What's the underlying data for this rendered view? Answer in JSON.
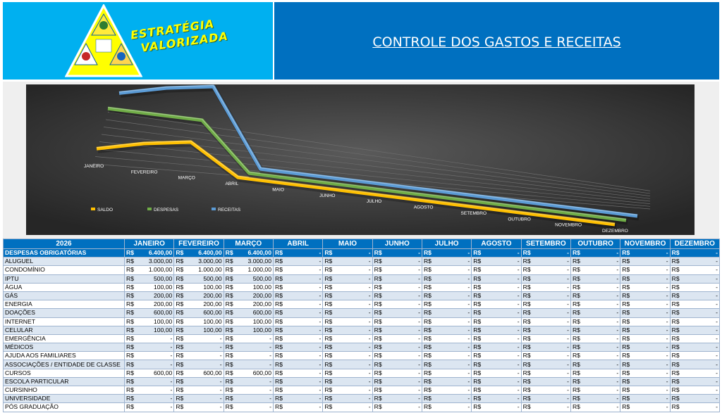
{
  "header": {
    "brand_line1": "ESTRATÉGIA",
    "brand_line2": "VALORIZADA",
    "title": "CONTROLE DOS GASTOS E RECEITAS"
  },
  "colors": {
    "header_blue": "#0070c0",
    "logo_bg": "#00b0f0",
    "saldo": "#ffc000",
    "despesas": "#70ad47",
    "receitas": "#5b9bd5"
  },
  "chart_data": {
    "type": "line",
    "style": "3d",
    "categories": [
      "JANEIRO",
      "FEVEREIRO",
      "MARÇO",
      "ABRIL",
      "MAIO",
      "JUNHO",
      "JULHO",
      "AGOSTO",
      "SETEMBRO",
      "OUTUBRO",
      "NOVEMBRO",
      "DEZEMBRO"
    ],
    "series": [
      {
        "name": "SALDO",
        "color": "#ffc000",
        "values": [
          1500,
          3000,
          4000,
          0,
          0,
          0,
          0,
          0,
          0,
          0,
          0,
          0
        ]
      },
      {
        "name": "DESPESAS",
        "color": "#70ad47",
        "values": [
          6400,
          6400,
          6400,
          0,
          0,
          0,
          0,
          0,
          0,
          0,
          0,
          0
        ]
      },
      {
        "name": "RECEITAS",
        "color": "#5b9bd5",
        "values": [
          7900,
          9400,
          10400,
          0,
          0,
          0,
          0,
          0,
          0,
          0,
          0,
          0
        ]
      }
    ],
    "legend_position": "bottom-left",
    "grid": true
  },
  "table": {
    "year": "2026",
    "months": [
      "JANEIRO",
      "FEVEREIRO",
      "MARÇO",
      "ABRIL",
      "MAIO",
      "JUNHO",
      "JULHO",
      "AGOSTO",
      "SETEMBRO",
      "OUTUBRO",
      "NOVEMBRO",
      "DEZEMBRO"
    ],
    "currency": "R$",
    "rows": [
      {
        "label": "DESPESAS OBRIGATÓRIAS",
        "cat": true,
        "values": [
          "6.400,00",
          "6.400,00",
          "6.400,00",
          "-",
          "-",
          "-",
          "-",
          "-",
          "-",
          "-",
          "-",
          "-"
        ]
      },
      {
        "label": "ALUGUEL",
        "values": [
          "3.000,00",
          "3.000,00",
          "3.000,00",
          "-",
          "-",
          "-",
          "-",
          "-",
          "-",
          "-",
          "-",
          "-"
        ]
      },
      {
        "label": "CONDOMÍNIO",
        "values": [
          "1.000,00",
          "1.000,00",
          "1.000,00",
          "-",
          "-",
          "-",
          "-",
          "-",
          "-",
          "-",
          "-",
          "-"
        ]
      },
      {
        "label": "IPTU",
        "values": [
          "500,00",
          "500,00",
          "500,00",
          "-",
          "-",
          "-",
          "-",
          "-",
          "-",
          "-",
          "-",
          "-"
        ]
      },
      {
        "label": "ÁGUA",
        "values": [
          "100,00",
          "100,00",
          "100,00",
          "-",
          "-",
          "-",
          "-",
          "-",
          "-",
          "-",
          "-",
          "-"
        ]
      },
      {
        "label": "GÁS",
        "values": [
          "200,00",
          "200,00",
          "200,00",
          "-",
          "-",
          "-",
          "-",
          "-",
          "-",
          "-",
          "-",
          "-"
        ]
      },
      {
        "label": "ENERGIA",
        "values": [
          "200,00",
          "200,00",
          "200,00",
          "-",
          "-",
          "-",
          "-",
          "-",
          "-",
          "-",
          "-",
          "-"
        ]
      },
      {
        "label": "DOAÇÕES",
        "values": [
          "600,00",
          "600,00",
          "600,00",
          "-",
          "-",
          "-",
          "-",
          "-",
          "-",
          "-",
          "-",
          "-"
        ]
      },
      {
        "label": "INTERNET",
        "values": [
          "100,00",
          "100,00",
          "100,00",
          "-",
          "-",
          "-",
          "-",
          "-",
          "-",
          "-",
          "-",
          "-"
        ]
      },
      {
        "label": "CELULAR",
        "values": [
          "100,00",
          "100,00",
          "100,00",
          "-",
          "-",
          "-",
          "-",
          "-",
          "-",
          "-",
          "-",
          "-"
        ]
      },
      {
        "label": "EMERGÊNCIA",
        "values": [
          "-",
          "-",
          "-",
          "-",
          "-",
          "-",
          "-",
          "-",
          "-",
          "-",
          "-",
          "-"
        ]
      },
      {
        "label": "MÉDICOS",
        "values": [
          "-",
          "-",
          "-",
          "-",
          "-",
          "-",
          "-",
          "-",
          "-",
          "-",
          "-",
          "-"
        ]
      },
      {
        "label": "AJUDA AOS FAMILIARES",
        "values": [
          "-",
          "-",
          "-",
          "-",
          "-",
          "-",
          "-",
          "-",
          "-",
          "-",
          "-",
          "-"
        ]
      },
      {
        "label": "ASSOCIAÇÕES / ENTIDADE DE CLASSE",
        "values": [
          "-",
          "-",
          "-",
          "-",
          "-",
          "-",
          "-",
          "-",
          "-",
          "-",
          "-",
          "-"
        ]
      },
      {
        "label": "CURSOS",
        "values": [
          "600,00",
          "600,00",
          "600,00",
          "-",
          "-",
          "-",
          "-",
          "-",
          "-",
          "-",
          "-",
          "-"
        ]
      },
      {
        "label": "ESCOLA PARTICULAR",
        "values": [
          "-",
          "-",
          "-",
          "-",
          "-",
          "-",
          "-",
          "-",
          "-",
          "-",
          "-",
          "-"
        ]
      },
      {
        "label": "CURSINHO",
        "values": [
          "-",
          "-",
          "-",
          "-",
          "-",
          "-",
          "-",
          "-",
          "-",
          "-",
          "-",
          "-"
        ]
      },
      {
        "label": "UNIVERSIDADE",
        "values": [
          "-",
          "-",
          "-",
          "-",
          "-",
          "-",
          "-",
          "-",
          "-",
          "-",
          "-",
          "-"
        ]
      },
      {
        "label": "PÓS GRADUAÇÃO",
        "values": [
          "-",
          "-",
          "-",
          "-",
          "-",
          "-",
          "-",
          "-",
          "-",
          "-",
          "-",
          "-"
        ]
      }
    ]
  }
}
